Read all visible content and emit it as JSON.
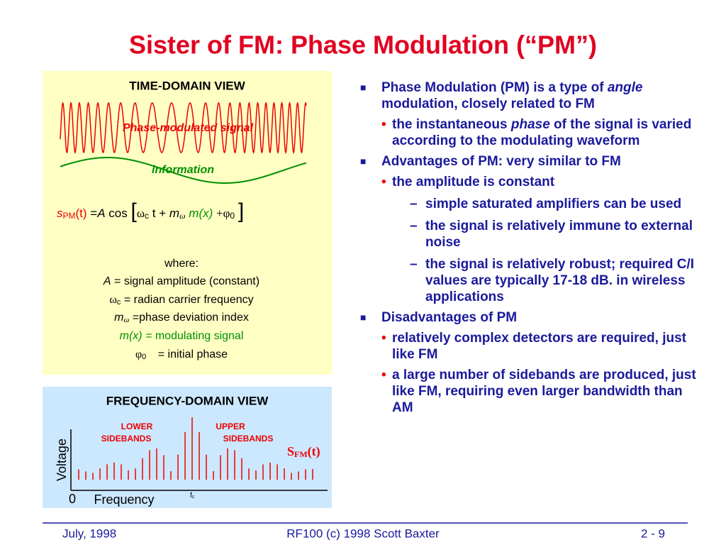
{
  "title": "Sister of FM: Phase Modulation (“PM”)",
  "time_domain": {
    "heading": "TIME-DOMAIN VIEW",
    "signal_label": "Phase-modulated signal",
    "info_label": "information",
    "formula": [
      "s",
      "PM",
      "(t)",
      "=",
      "A",
      "cos",
      "[",
      "ω",
      "c",
      "t +",
      "m",
      "ω",
      "m(x)",
      "+φ",
      "0",
      "]"
    ],
    "where": "where:",
    "definitions": [
      [
        "A",
        "=",
        "signal amplitude (constant)"
      ],
      [
        "ω",
        "c",
        "= radian carrier frequency"
      ],
      [
        "m",
        "ω",
        "=",
        "phase deviation index"
      ],
      [
        "m(x) =",
        "modulating signal"
      ],
      [
        "φ",
        "0",
        "= initial phase"
      ]
    ]
  },
  "frequency_domain": {
    "heading": "FREQUENCY-DOMAIN VIEW",
    "lower": [
      "LOWER",
      "SIDEBANDS"
    ],
    "upper": [
      "UPPER",
      "SIDEBANDS"
    ],
    "spectrum_label": [
      "S",
      "FM",
      "(t)"
    ],
    "y_label": "Voltage",
    "origin": "0",
    "x_label": "Frequency",
    "carrier": [
      "f",
      "c"
    ]
  },
  "bullets": [
    {
      "text": [
        "Phase Modulation (PM) is a type of ",
        "angle",
        " modulation, closely related to FM"
      ],
      "items": [
        {
          "text": [
            "the instantaneous ",
            "phase",
            " of the signal is varied according to the modulating waveform"
          ]
        }
      ]
    },
    {
      "text": [
        "Advantages of PM: very similar to FM"
      ],
      "items": [
        {
          "text": [
            "the amplitude is constant"
          ],
          "items": [
            {
              "text": [
                "simple saturated amplifiers can be used"
              ]
            },
            {
              "text": [
                "the signal is relatively immune to external noise"
              ]
            },
            {
              "text": [
                "the signal is relatively robust; required C/I values are typically 17-18 dB. in wireless applications"
              ]
            }
          ]
        }
      ]
    },
    {
      "text": [
        "Disadvantages of PM"
      ],
      "items": [
        {
          "text": [
            "relatively complex detectors are required, just like FM"
          ]
        },
        {
          "text": [
            "a large number of sidebands are produced, just like FM, requiring even larger bandwidth than AM"
          ]
        }
      ]
    }
  ],
  "footer": {
    "date": "July, 1998",
    "center": "RF100 (c) 1998 Scott Baxter",
    "page": "2 - 9"
  }
}
